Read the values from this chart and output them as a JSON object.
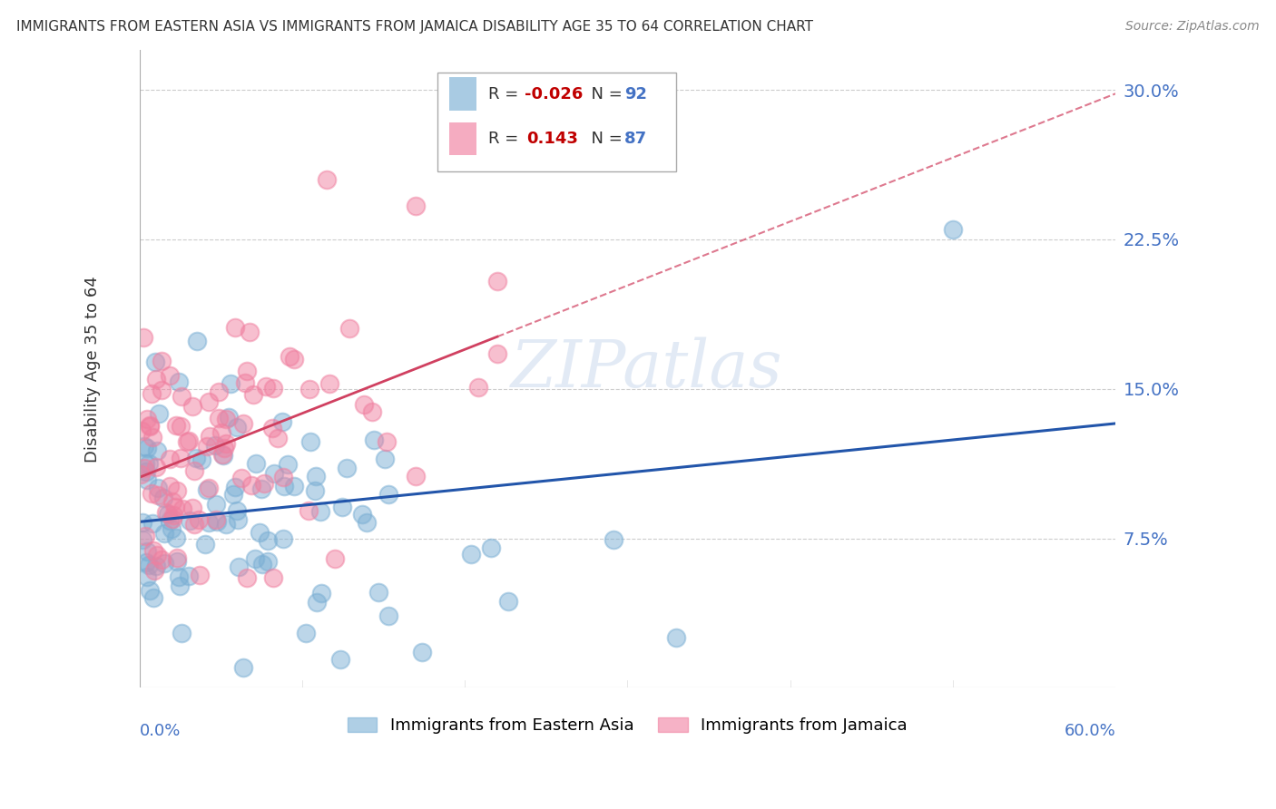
{
  "title": "IMMIGRANTS FROM EASTERN ASIA VS IMMIGRANTS FROM JAMAICA DISABILITY AGE 35 TO 64 CORRELATION CHART",
  "source": "Source: ZipAtlas.com",
  "ylabel": "Disability Age 35 to 64",
  "xmin": 0.0,
  "xmax": 0.6,
  "ymin": 0.0,
  "ymax": 0.32,
  "ytick_vals": [
    0.075,
    0.15,
    0.225,
    0.3
  ],
  "ytick_labels": [
    "7.5%",
    "15.0%",
    "22.5%",
    "30.0%"
  ],
  "series1_name": "Immigrants from Eastern Asia",
  "series2_name": "Immigrants from Jamaica",
  "series1_color": "#7bafd4",
  "series2_color": "#f080a0",
  "series1_R": -0.026,
  "series2_R": 0.143,
  "series1_N": 92,
  "series2_N": 87,
  "watermark": "ZIPatlas",
  "background_color": "#ffffff",
  "grid_color": "#cccccc",
  "title_color": "#333333",
  "axis_label_color": "#4472c4",
  "series1_line_color": "#2255aa",
  "series2_line_color": "#d04060",
  "legend_R_color": "#c00000",
  "legend_N_color": "#4472c4"
}
